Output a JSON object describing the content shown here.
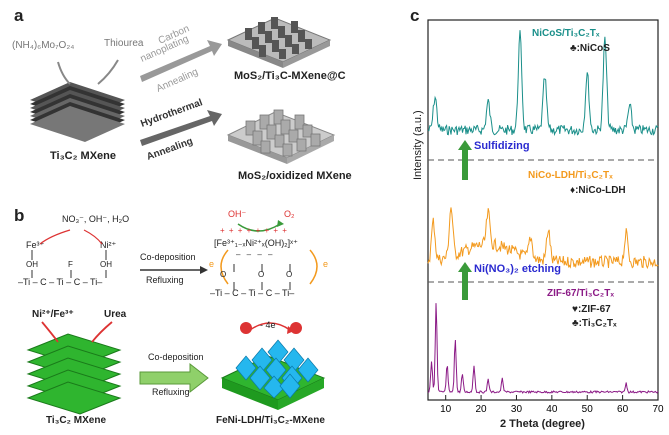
{
  "panel_a": {
    "letter": "a",
    "precursor1": "(NH₄)₆Mo₇O₂₄",
    "precursor2": "Thiourea",
    "substrate": "Ti₃C₂ MXene",
    "arrow1_top": "Carbon",
    "arrow1_mid": "nanoplating",
    "arrow1_bottom": "Annealing",
    "arrow2_top": "Hydrothermal",
    "arrow2_bottom": "Annealing",
    "product1": "MoS₂/Ti₃C-MXene@C",
    "product2": "MoS₂/oxidized MXene"
  },
  "panel_b": {
    "letter": "b",
    "ions": "NO₃⁻, OH⁻, H₂O",
    "fe": "Fe³⁺",
    "ni": "Ni²⁺",
    "oh_oxygen": "OH⁻",
    "o2": "O₂",
    "ldh_formula": "[Fe³⁺₁₋ₓNi²⁺ₓ(OH)₂]ˣ⁺",
    "step_top": "Co-deposition",
    "step_bottom": "Refluxing",
    "electron": "e",
    "plus_row": "+ + + + + + + +",
    "minus_row": "– – – –",
    "chain": "–Ti – C – Ti – C – Ti–",
    "chain_ti_f": "F",
    "chain_oh": "OH",
    "chain_o": "O",
    "ni_fe": "Ni²⁺/Fe³⁺",
    "urea": "Urea",
    "minus4e": "- 4e",
    "step2_top": "Co-deposition",
    "step2_bottom": "Refluxing",
    "substrate": "Ti₃C₂ MXene",
    "product": "FeNi-LDH/Ti₃C₂-MXene"
  },
  "panel_c": {
    "letter": "c",
    "ylabel": "Intensity (a.u.)",
    "xlabel": "2 Theta (degree)",
    "xticks": [
      "10",
      "20",
      "30",
      "40",
      "50",
      "60",
      "70"
    ],
    "s1_name": "NiCoS/Ti₃C₂Tₓ",
    "s1_legend": "♣:NiCoS",
    "s2_name": "NiCo-LDH/Ti₃C₂Tₓ",
    "s2_legend": "♦:NiCo-LDH",
    "s3_name": "ZIF-67/Ti₃C₂Tₓ",
    "s3_legend1": "♥:ZIF-67",
    "s3_legend2": "♣:Ti₃C₂Tₓ",
    "step1": "Sulfidizing",
    "step2": "Ni(NO₃)₂ etching",
    "colors": {
      "teal": "#1a8f8a",
      "orange": "#f39a1e",
      "purple": "#8b1a86",
      "blue": "#2a2ad0",
      "green": "#3a9a3a"
    }
  },
  "chart_data": {
    "type": "line",
    "xlabel": "2 Theta (degree)",
    "ylabel": "Intensity (a.u.)",
    "xlim": [
      5,
      70
    ],
    "xticks": [
      10,
      20,
      30,
      40,
      50,
      60,
      70
    ],
    "series": [
      {
        "name": "NiCoS/Ti₃C₂Tₓ",
        "color": "#1a8f8a",
        "peaks": [
          [
            7,
            0.35
          ],
          [
            22,
            0.3
          ],
          [
            31,
            1.0
          ],
          [
            38,
            0.55
          ],
          [
            50,
            0.6
          ],
          [
            55,
            0.95
          ],
          [
            62,
            0.25
          ]
        ]
      },
      {
        "name": "NiCo-LDH/Ti₃C₂Tₓ",
        "color": "#f39a1e",
        "peaks": [
          [
            6.5,
            0.55
          ],
          [
            11.5,
            0.7
          ],
          [
            22,
            0.45
          ],
          [
            34,
            0.3
          ],
          [
            39,
            0.45
          ],
          [
            61,
            0.4
          ]
        ]
      },
      {
        "name": "ZIF-67/Ti₃C₂Tₓ",
        "color": "#8b1a86",
        "peaks": [
          [
            6,
            0.35
          ],
          [
            7.3,
            1.0
          ],
          [
            10.4,
            0.3
          ],
          [
            12.7,
            0.6
          ],
          [
            14.7,
            0.2
          ],
          [
            18,
            0.3
          ],
          [
            22,
            0.15
          ],
          [
            26,
            0.15
          ],
          [
            61,
            0.1
          ]
        ]
      }
    ]
  }
}
